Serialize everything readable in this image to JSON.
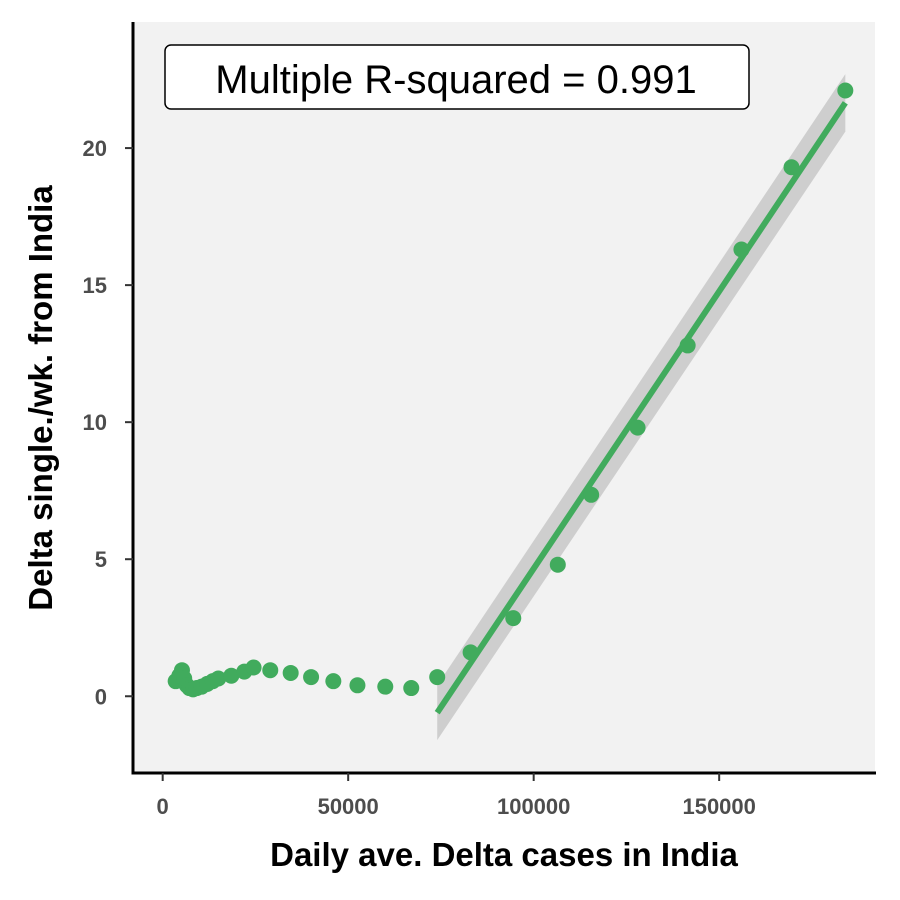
{
  "chart_data": {
    "type": "scatter",
    "title": "",
    "xlabel": "Daily ave. Delta cases in India",
    "ylabel": "Delta single./wk. from India",
    "xlim": [
      -8000,
      192000
    ],
    "ylim": [
      -2.8,
      24.6
    ],
    "xticks": [
      0,
      50000,
      100000,
      150000
    ],
    "xtick_labels": [
      "0",
      "50000",
      "100000",
      "150000"
    ],
    "yticks": [
      0,
      5,
      10,
      15,
      20
    ],
    "ytick_labels": [
      "0",
      "5",
      "10",
      "15",
      "20"
    ],
    "grid": false,
    "panel_background": "#f2f2f2",
    "point_color": "#41ab5d",
    "annotation": "Multiple R-squared = 0.991",
    "series": [
      {
        "x": [
          3500,
          4500,
          5200,
          5800,
          6500,
          7200,
          8200,
          9200,
          10500,
          12000,
          13500,
          15000,
          18500,
          22000,
          24500,
          29000,
          34500,
          40000,
          46000,
          52500,
          60000,
          67000,
          74000,
          83000,
          94500,
          106500,
          115500,
          128000,
          141500,
          156000,
          169500,
          184000
        ],
        "y": [
          0.55,
          0.75,
          0.95,
          0.65,
          0.4,
          0.3,
          0.25,
          0.3,
          0.35,
          0.45,
          0.55,
          0.65,
          0.75,
          0.9,
          1.05,
          0.95,
          0.85,
          0.7,
          0.55,
          0.4,
          0.35,
          0.3,
          0.7,
          1.6,
          2.85,
          4.8,
          7.35,
          9.8,
          12.8,
          16.3,
          19.3,
          22.1
        ]
      }
    ],
    "fit": {
      "x": [
        74000,
        184000
      ],
      "y": [
        -0.6,
        21.65
      ],
      "ci_low": [
        -1.6,
        20.6
      ],
      "ci_high": [
        0.4,
        22.7
      ],
      "color": "#41ab5d",
      "ci_color": "#c8c8c8"
    }
  }
}
